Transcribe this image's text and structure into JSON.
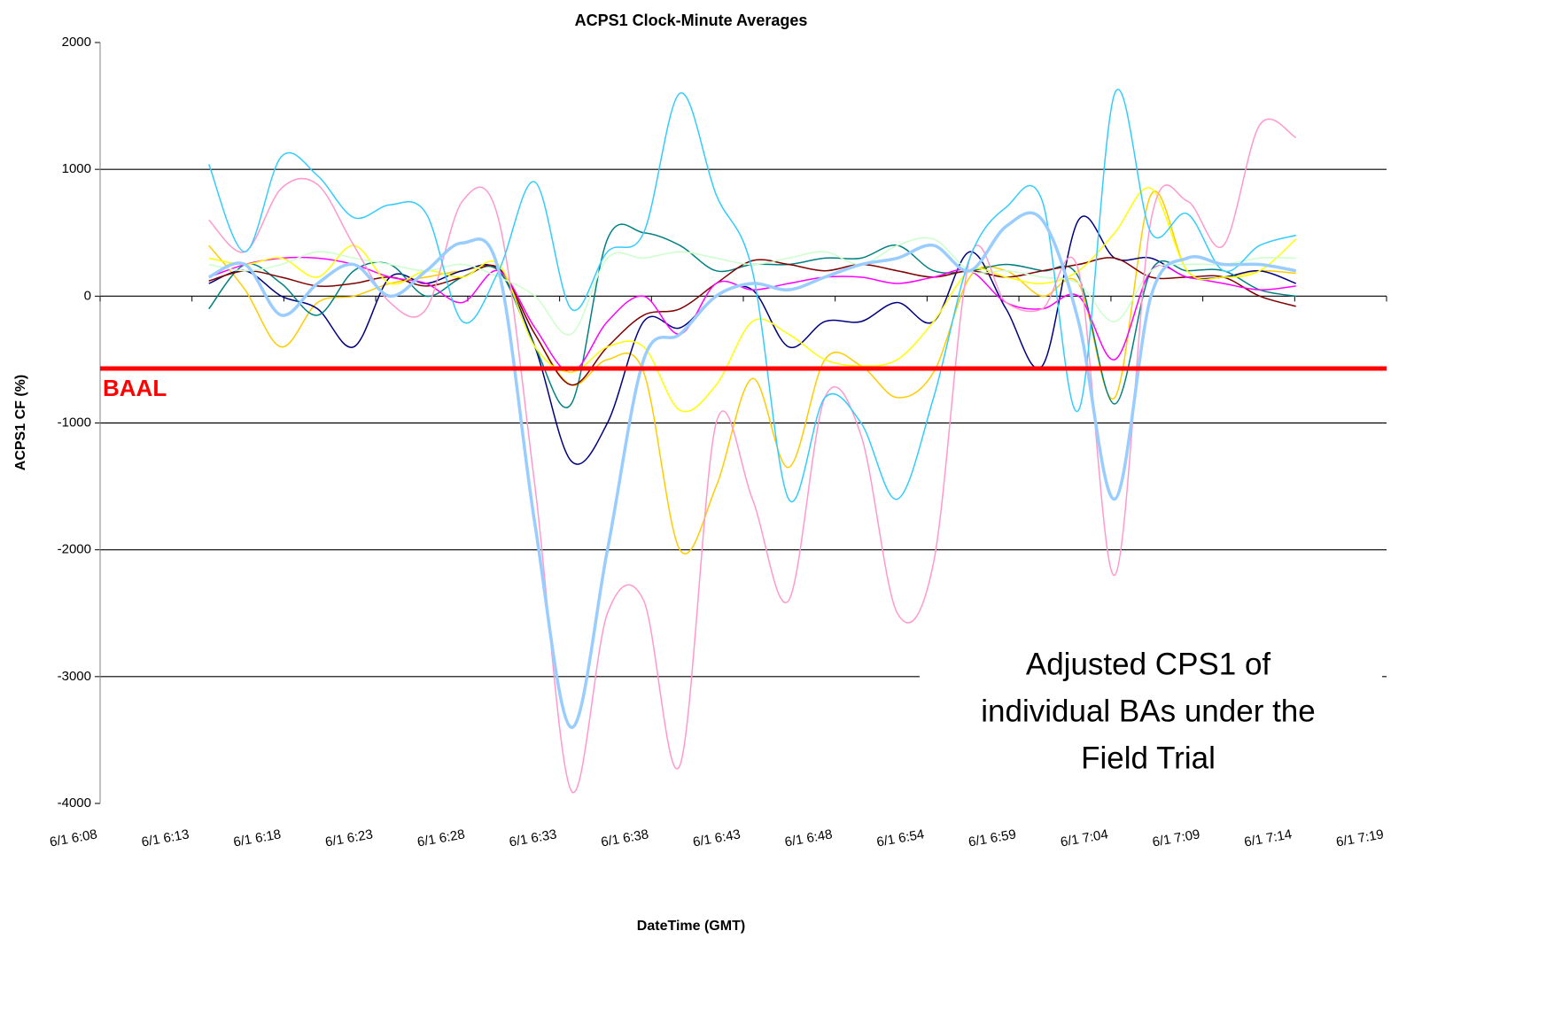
{
  "chart_data": {
    "type": "line",
    "title": "ACPS1 Clock-Minute Averages",
    "xlabel": "DateTime (GMT)",
    "ylabel": "ACPS1 CF (%)",
    "x": [
      14,
      16,
      18,
      20,
      22,
      24,
      26,
      28,
      30,
      32,
      34,
      36,
      38,
      40,
      42,
      44,
      46,
      48,
      50,
      52,
      54,
      56,
      58,
      60,
      62,
      64,
      66,
      68,
      70,
      72,
      74
    ],
    "xlim": [
      8,
      79
    ],
    "xticks": [
      {
        "value": 8,
        "label": "6/1 6:08"
      },
      {
        "value": 13.07,
        "label": "6/1 6:13"
      },
      {
        "value": 18.14,
        "label": "6/1 6:18"
      },
      {
        "value": 23.21,
        "label": "6/1 6:23"
      },
      {
        "value": 28.29,
        "label": "6/1 6:28"
      },
      {
        "value": 33.36,
        "label": "6/1 6:33"
      },
      {
        "value": 38.43,
        "label": "6/1 6:38"
      },
      {
        "value": 43.5,
        "label": "6/1 6:43"
      },
      {
        "value": 48.57,
        "label": "6/1 6:48"
      },
      {
        "value": 53.64,
        "label": "6/1 6:54"
      },
      {
        "value": 58.71,
        "label": "6/1 6:59"
      },
      {
        "value": 63.79,
        "label": "6/1 7:04"
      },
      {
        "value": 68.86,
        "label": "6/1 7:09"
      },
      {
        "value": 73.93,
        "label": "6/1 7:14"
      },
      {
        "value": 79,
        "label": "6/1 7:19"
      }
    ],
    "ylim": [
      -4000,
      2000
    ],
    "yticks": [
      -4000,
      -3000,
      -2000,
      -1000,
      0,
      1000,
      2000
    ],
    "grid": true,
    "reference_line": {
      "label": "BAAL",
      "value": -570,
      "color": "#ff0000"
    },
    "annotation": [
      "Adjusted CPS1 of",
      "individual BAs under the",
      "Field Trial"
    ],
    "series": [
      {
        "color": "#33ccff",
        "width": 1.5,
        "values": [
          1040,
          350,
          1100,
          950,
          620,
          720,
          650,
          -200,
          200,
          900,
          -100,
          350,
          500,
          1600,
          800,
          200,
          -1600,
          -800,
          -1000,
          -1600,
          -800,
          300,
          700,
          750,
          -900,
          1600,
          500,
          650,
          200,
          400,
          480
        ]
      },
      {
        "color": "#ff99cc",
        "width": 1.5,
        "values": [
          600,
          350,
          850,
          880,
          400,
          -50,
          -100,
          750,
          600,
          -1500,
          -3900,
          -2500,
          -2400,
          -3700,
          -1000,
          -1600,
          -2400,
          -800,
          -1100,
          -2500,
          -2100,
          300,
          -50,
          -100,
          200,
          -2200,
          600,
          750,
          400,
          1350,
          1250
        ]
      },
      {
        "color": "#99ccff",
        "width": 3.5,
        "values": [
          150,
          250,
          -150,
          100,
          250,
          0,
          200,
          420,
          200,
          -1800,
          -3400,
          -2000,
          -500,
          -300,
          0,
          100,
          50,
          150,
          250,
          300,
          400,
          200,
          550,
          600,
          -200,
          -1600,
          0,
          300,
          250,
          250,
          200
        ]
      },
      {
        "color": "#ffcc00",
        "width": 1.5,
        "values": [
          400,
          50,
          -400,
          -50,
          0,
          100,
          150,
          200,
          200,
          -300,
          -700,
          -500,
          -600,
          -2000,
          -1500,
          -650,
          -1350,
          -500,
          -550,
          -800,
          -600,
          150,
          200,
          0,
          100,
          -800,
          800,
          200,
          150,
          200,
          180
        ]
      },
      {
        "color": "#000080",
        "width": 1.5,
        "values": [
          100,
          200,
          0,
          -100,
          -400,
          150,
          100,
          200,
          200,
          -400,
          -1300,
          -1000,
          -200,
          -250,
          0,
          50,
          -400,
          -200,
          -200,
          -50,
          -200,
          350,
          -100,
          -550,
          600,
          300,
          300,
          150,
          150,
          200,
          100
        ]
      },
      {
        "color": "#008080",
        "width": 1.5,
        "values": [
          -100,
          250,
          100,
          -150,
          200,
          250,
          0,
          150,
          200,
          -400,
          -850,
          450,
          500,
          400,
          200,
          250,
          250,
          300,
          300,
          400,
          200,
          200,
          250,
          200,
          150,
          -850,
          200,
          200,
          200,
          50,
          0
        ]
      },
      {
        "color": "#800000",
        "width": 1.5,
        "values": [
          120,
          200,
          150,
          80,
          100,
          150,
          80,
          150,
          220,
          -300,
          -700,
          -400,
          -150,
          -100,
          100,
          280,
          250,
          200,
          250,
          200,
          150,
          200,
          150,
          200,
          250,
          300,
          150,
          150,
          150,
          0,
          -80
        ]
      },
      {
        "color": "#ff00ff",
        "width": 1.5,
        "values": [
          150,
          250,
          300,
          300,
          250,
          150,
          100,
          -50,
          200,
          -250,
          -600,
          -200,
          0,
          -300,
          100,
          50,
          100,
          150,
          150,
          100,
          150,
          200,
          -50,
          -100,
          0,
          -500,
          200,
          150,
          100,
          50,
          80
        ]
      },
      {
        "color": "#ffff00",
        "width": 1.5,
        "values": [
          300,
          250,
          300,
          150,
          400,
          100,
          200,
          150,
          250,
          -400,
          -600,
          -400,
          -400,
          -900,
          -700,
          -200,
          -300,
          -500,
          -550,
          -500,
          -200,
          200,
          150,
          100,
          200,
          500,
          850,
          200,
          150,
          200,
          450
        ]
      },
      {
        "color": "#ccffcc",
        "width": 1.5,
        "values": [
          250,
          200,
          250,
          350,
          300,
          250,
          200,
          250,
          150,
          0,
          -300,
          300,
          300,
          350,
          300,
          250,
          300,
          350,
          250,
          400,
          450,
          200,
          200,
          150,
          100,
          -200,
          200,
          250,
          250,
          300,
          300
        ]
      }
    ]
  }
}
